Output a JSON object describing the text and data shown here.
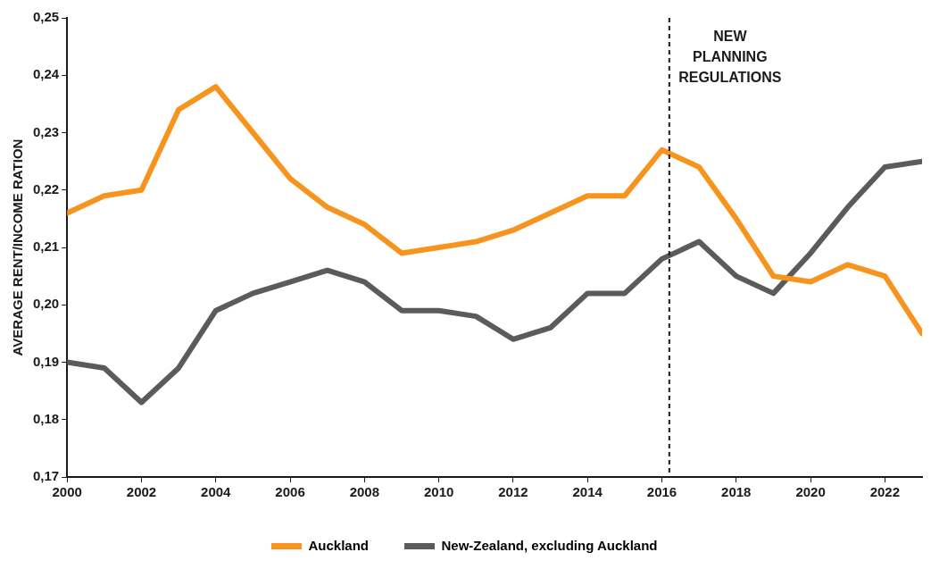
{
  "chart_data": {
    "type": "line",
    "ylabel": "AVERAGE RENT/INCOME RATION",
    "x": [
      2000,
      2001,
      2002,
      2003,
      2004,
      2005,
      2006,
      2007,
      2008,
      2009,
      2010,
      2011,
      2012,
      2013,
      2014,
      2015,
      2016,
      2017,
      2018,
      2019,
      2020,
      2021,
      2022,
      2023
    ],
    "series": [
      {
        "name": "Auckland",
        "color": "#f7941d",
        "values": [
          0.216,
          0.219,
          0.22,
          0.234,
          0.238,
          0.23,
          0.222,
          0.217,
          0.214,
          0.209,
          0.21,
          0.211,
          0.213,
          0.216,
          0.219,
          0.219,
          0.227,
          0.224,
          0.215,
          0.205,
          0.204,
          0.207,
          0.205,
          0.195
        ]
      },
      {
        "name": "New-Zealand, excluding Auckland",
        "color": "#5b5b5d",
        "values": [
          0.19,
          0.189,
          0.183,
          0.189,
          0.199,
          0.202,
          0.204,
          0.206,
          0.204,
          0.199,
          0.199,
          0.198,
          0.194,
          0.196,
          0.202,
          0.202,
          0.208,
          0.211,
          0.205,
          0.202,
          0.209,
          0.217,
          0.224,
          0.225
        ]
      }
    ],
    "xlim": [
      2000,
      2023
    ],
    "xticks": [
      2000,
      2002,
      2004,
      2006,
      2008,
      2010,
      2012,
      2014,
      2016,
      2018,
      2020,
      2022
    ],
    "ylim": [
      0.17,
      0.25
    ],
    "yticks": [
      {
        "value": 0.17,
        "label": "0,17"
      },
      {
        "value": 0.18,
        "label": "0,18"
      },
      {
        "value": 0.19,
        "label": "0,19"
      },
      {
        "value": 0.2,
        "label": "0,20"
      },
      {
        "value": 0.21,
        "label": "0,21"
      },
      {
        "value": 0.22,
        "label": "0,22"
      },
      {
        "value": 0.23,
        "label": "0,23"
      },
      {
        "value": 0.24,
        "label": "0,24"
      },
      {
        "value": 0.25,
        "label": "0,25"
      }
    ],
    "ref_lines": [
      {
        "axis": "x",
        "value": 2016.2,
        "label": "NEW PLANNING REGULATIONS",
        "color": "#1a1a1a",
        "line_style": "dashed"
      }
    ],
    "grid": false,
    "legend": "bottom",
    "marker": "none",
    "line_style": "solid"
  }
}
